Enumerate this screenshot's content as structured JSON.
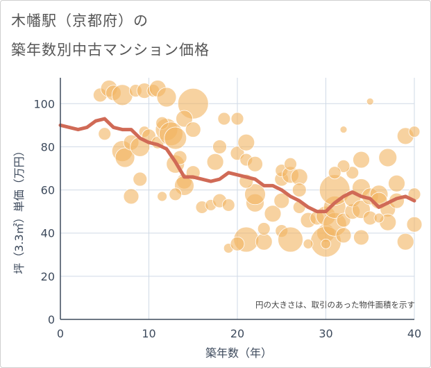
{
  "title_line1": "木幡駅（京都府）の",
  "title_line2": "築年数別中古マンション価格",
  "chart_data": {
    "type": "scatter",
    "xlabel": "築年数（年）",
    "ylabel": "坪（3.3㎡）単価（万円）",
    "xlim": [
      0,
      40
    ],
    "ylim": [
      0,
      112
    ],
    "xticks": [
      0,
      10,
      20,
      30,
      40
    ],
    "yticks": [
      0,
      20,
      40,
      60,
      80,
      100
    ],
    "grid": true,
    "annotation": "円の大きさは、取引のあった物件面積を示す",
    "colors": {
      "bubble": "#f2b461",
      "line": "#d06a56",
      "grid": "#cfd9e6",
      "axis": "#3d4a5c"
    },
    "series": [
      {
        "type": "line",
        "points": [
          [
            0,
            90
          ],
          [
            1,
            89
          ],
          [
            2,
            88
          ],
          [
            3,
            89
          ],
          [
            4,
            92
          ],
          [
            5,
            93
          ],
          [
            6,
            89
          ],
          [
            7,
            88
          ],
          [
            8,
            88
          ],
          [
            9,
            84
          ],
          [
            10,
            82
          ],
          [
            11,
            81
          ],
          [
            12,
            79
          ],
          [
            13,
            73
          ],
          [
            14,
            66
          ],
          [
            15,
            66
          ],
          [
            16,
            65
          ],
          [
            17,
            64
          ],
          [
            18,
            65
          ],
          [
            19,
            68
          ],
          [
            20,
            67
          ],
          [
            21,
            66
          ],
          [
            22,
            65
          ],
          [
            23,
            62
          ],
          [
            24,
            62
          ],
          [
            25,
            60
          ],
          [
            26,
            57
          ],
          [
            27,
            55
          ],
          [
            28,
            52
          ],
          [
            29,
            50
          ],
          [
            30,
            50
          ],
          [
            31,
            54
          ],
          [
            32,
            57
          ],
          [
            33,
            59
          ],
          [
            34,
            57
          ],
          [
            35,
            56
          ],
          [
            36,
            52
          ],
          [
            37,
            54
          ],
          [
            38,
            56
          ],
          [
            39,
            57
          ],
          [
            40,
            55
          ]
        ]
      },
      {
        "type": "bubble",
        "points": [
          [
            4.5,
            104,
            10
          ],
          [
            5.5,
            107,
            12
          ],
          [
            6,
            105,
            11
          ],
          [
            7,
            104,
            15
          ],
          [
            8.5,
            106,
            9
          ],
          [
            9.5,
            106,
            11
          ],
          [
            10.5,
            106,
            9
          ],
          [
            11,
            107,
            12
          ],
          [
            12,
            103,
            14
          ],
          [
            15,
            100,
            22
          ],
          [
            5,
            86,
            9
          ],
          [
            7,
            78,
            15
          ],
          [
            7.3,
            75,
            14
          ],
          [
            8,
            82,
            11
          ],
          [
            9,
            80,
            14
          ],
          [
            9.5,
            87,
            8
          ],
          [
            10,
            85,
            10
          ],
          [
            11,
            82,
            9
          ],
          [
            12,
            88,
            16
          ],
          [
            11.5,
            91,
            9
          ],
          [
            12.5,
            86,
            17
          ],
          [
            13,
            84,
            16
          ],
          [
            14,
            93,
            12
          ],
          [
            15,
            88,
            11
          ],
          [
            13,
            72,
            13
          ],
          [
            13.5,
            75,
            10
          ],
          [
            14,
            64,
            11
          ],
          [
            14,
            62,
            14
          ],
          [
            15,
            68,
            10
          ],
          [
            13,
            58,
            9
          ],
          [
            11.5,
            57,
            7
          ],
          [
            8,
            57,
            11
          ],
          [
            9,
            65,
            10
          ],
          [
            16,
            52,
            9
          ],
          [
            17,
            53,
            8
          ],
          [
            18,
            55,
            10
          ],
          [
            19,
            53,
            9
          ],
          [
            17.5,
            73,
            12
          ],
          [
            18,
            80,
            10
          ],
          [
            18.5,
            93,
            9
          ],
          [
            20,
            93,
            9
          ],
          [
            20,
            77,
            10
          ],
          [
            21,
            74,
            9
          ],
          [
            22,
            72,
            11
          ],
          [
            21,
            82,
            12
          ],
          [
            22,
            54,
            13
          ],
          [
            22,
            58,
            15
          ],
          [
            21,
            64,
            10
          ],
          [
            21,
            37,
            18
          ],
          [
            19,
            33,
            7
          ],
          [
            20,
            35,
            10
          ],
          [
            23,
            36,
            12
          ],
          [
            23,
            42,
            9
          ],
          [
            24,
            49,
            12
          ],
          [
            25,
            41,
            9
          ],
          [
            25,
            55,
            11
          ],
          [
            25,
            65,
            10
          ],
          [
            25,
            69,
            9
          ],
          [
            26,
            67,
            12
          ],
          [
            26,
            72,
            9
          ],
          [
            27,
            66,
            12
          ],
          [
            27,
            60,
            10
          ],
          [
            27,
            52,
            9
          ],
          [
            26,
            37,
            18
          ],
          [
            28,
            46,
            11
          ],
          [
            29,
            47,
            10
          ],
          [
            30,
            40,
            13
          ],
          [
            30,
            48,
            14
          ],
          [
            30,
            36,
            22
          ],
          [
            31,
            44,
            17
          ],
          [
            31,
            52,
            16
          ],
          [
            31,
            60,
            22
          ],
          [
            32,
            46,
            10
          ],
          [
            32,
            39,
            11
          ],
          [
            33,
            50,
            11
          ],
          [
            33,
            56,
            12
          ],
          [
            34,
            51,
            13
          ],
          [
            34,
            61,
            13
          ],
          [
            34,
            74,
            12
          ],
          [
            35,
            57,
            12
          ],
          [
            35,
            47,
            10
          ],
          [
            36,
            58,
            13
          ],
          [
            36,
            55,
            12
          ],
          [
            37,
            51,
            11
          ],
          [
            37,
            45,
            12
          ],
          [
            38,
            55,
            11
          ],
          [
            38,
            63,
            12
          ],
          [
            37,
            75,
            13
          ],
          [
            39,
            36,
            12
          ],
          [
            39,
            85,
            12
          ],
          [
            40,
            87,
            8
          ],
          [
            40,
            44,
            11
          ],
          [
            40,
            58,
            9
          ],
          [
            35,
            101,
            5
          ],
          [
            32,
            88,
            5
          ],
          [
            30,
            35,
            7
          ],
          [
            28,
            35,
            7
          ],
          [
            34,
            38,
            11
          ],
          [
            36,
            47,
            7
          ],
          [
            33,
            68,
            9
          ],
          [
            32,
            71,
            9
          ],
          [
            31,
            68,
            9
          ]
        ]
      }
    ]
  }
}
